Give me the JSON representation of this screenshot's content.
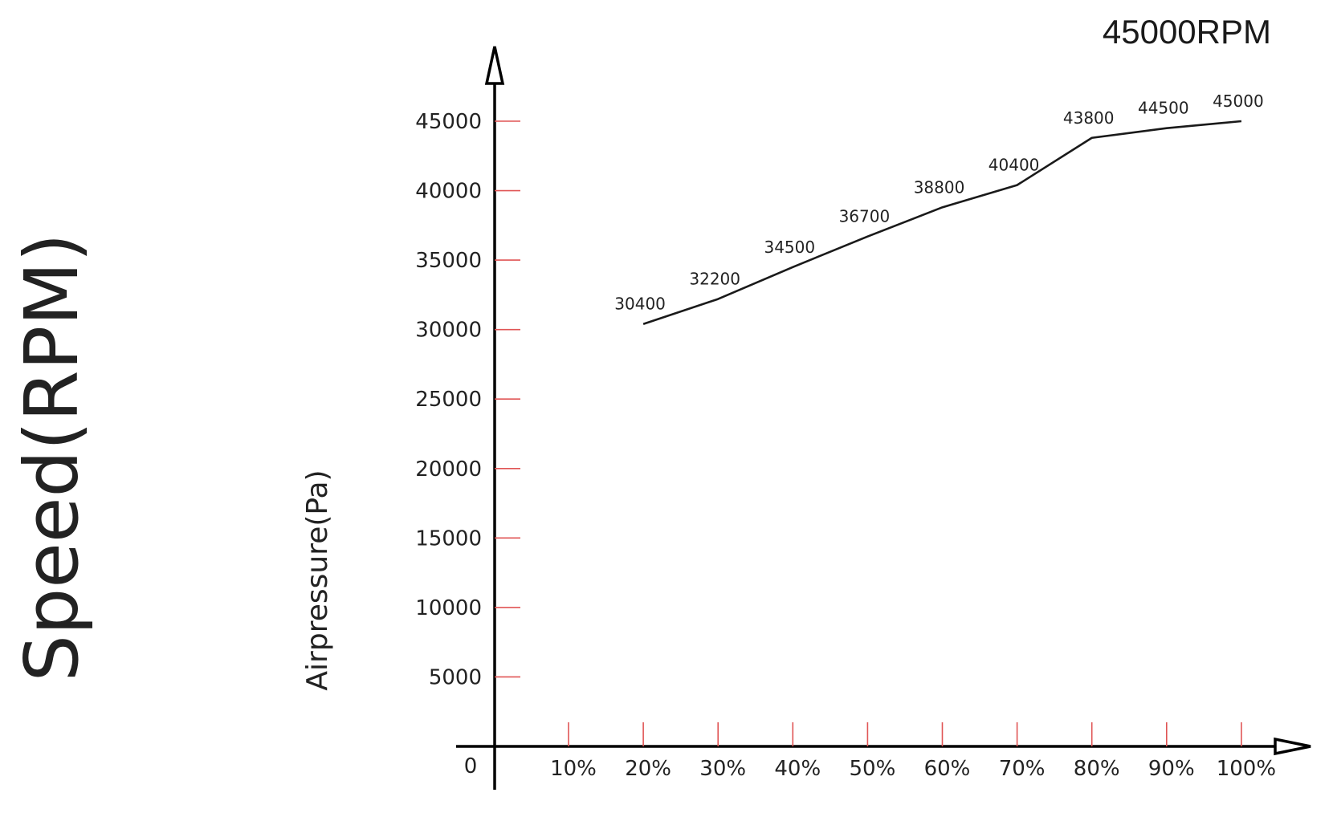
{
  "chart_data": {
    "type": "line",
    "title": "45000RPM",
    "side_label": "Speed(RPM)",
    "ylabel": "Airpressure(Pa)",
    "xlabel": "",
    "origin_label": "0",
    "x_ticks": [
      "10%",
      "20%",
      "30%",
      "40%",
      "50%",
      "60%",
      "70%",
      "80%",
      "90%",
      "100%"
    ],
    "y_ticks": [
      "5000",
      "10000",
      "15000",
      "20000",
      "25000",
      "30000",
      "35000",
      "40000",
      "45000"
    ],
    "ylim": [
      0,
      45000
    ],
    "grid": false,
    "colors": {
      "line": "#1a1a1a",
      "axis": "#000000",
      "tick": "#e05555"
    },
    "series": [
      {
        "x": [
          "20%",
          "30%",
          "40%",
          "50%",
          "60%",
          "70%",
          "80%",
          "90%",
          "100%"
        ],
        "values": [
          30400,
          32200,
          34500,
          36700,
          38800,
          40400,
          43800,
          44500,
          45000
        ],
        "labels": [
          "30400",
          "32200",
          "34500",
          "36700",
          "38800",
          "40400",
          "43800",
          "44500",
          "45000"
        ]
      }
    ]
  }
}
